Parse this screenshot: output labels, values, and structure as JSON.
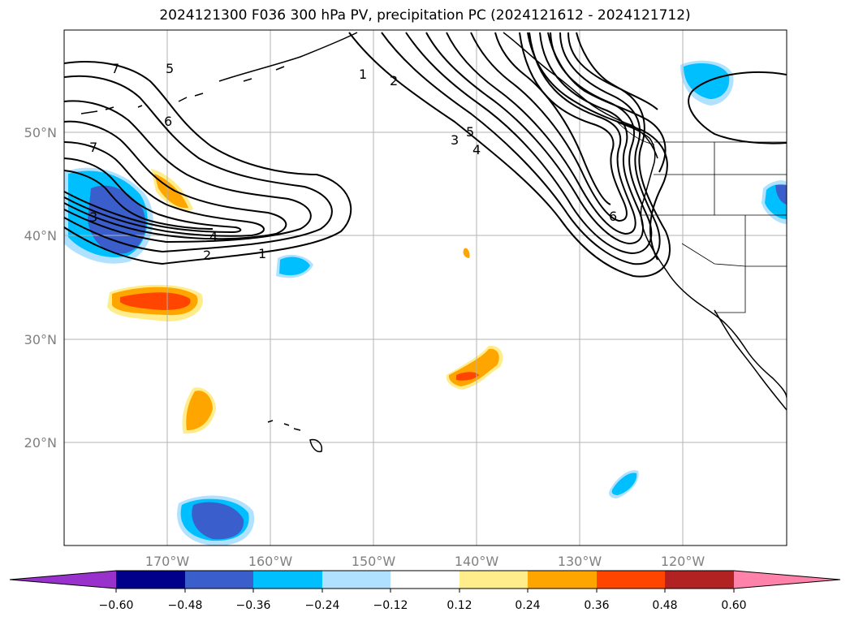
{
  "title": "2024121300 F036 300 hPa PV, precipitation PC (2024121612 - 2024121712)",
  "lat_labels": [
    "50°N",
    "40°N",
    "30°N",
    "20°N"
  ],
  "lon_labels": [
    "170°W",
    "160°W",
    "150°W",
    "140°W",
    "130°W",
    "120°W"
  ],
  "pv_contour_labels": [
    "1",
    "2",
    "3",
    "4",
    "5",
    "6",
    "7"
  ],
  "colorbar": {
    "ticks": [
      "−0.60",
      "−0.48",
      "−0.36",
      "−0.24",
      "−0.12",
      "0.12",
      "0.24",
      "0.36",
      "0.48",
      "0.60"
    ],
    "colors": [
      "#9932cc",
      "#00008b",
      "#3a5fcd",
      "#00bfff",
      "#b0e2ff",
      "#ffffff",
      "#ffec8b",
      "#ffa500",
      "#ff4500",
      "#b22222",
      "#ff82ab",
      "#ff82ab"
    ]
  },
  "shading_colors": {
    "light_blue": "#b0e2ff",
    "blue": "#00bfff",
    "dark_blue": "#3a5fcd",
    "light_yellow": "#ffec8b",
    "orange": "#ffa500",
    "red_orange": "#ff4500"
  }
}
